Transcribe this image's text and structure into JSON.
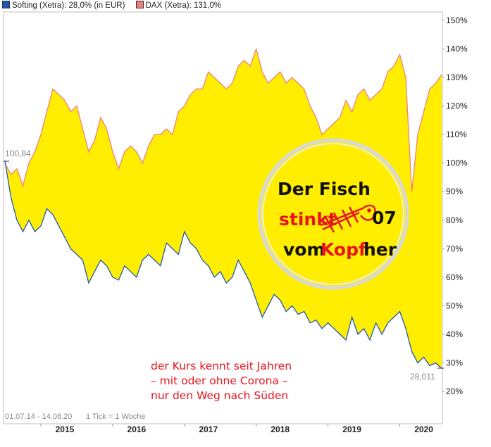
{
  "legend": [
    {
      "label": "Softing (Xetra): 28,0% (in EUR)",
      "color": "#1f57b5"
    },
    {
      "label": "DAX (Xetra): 131,0%",
      "color": "#f08080"
    }
  ],
  "chart_data": {
    "type": "area",
    "y_tick_labels": [
      "20%",
      "30%",
      "40%",
      "50%",
      "60%",
      "70%",
      "80%",
      "90%",
      "100%",
      "110%",
      "120%",
      "130%",
      "140%",
      "150%"
    ],
    "ylim": [
      15,
      155
    ],
    "x_tick_labels": [
      "2015",
      "2016",
      "2017",
      "2018",
      "2019",
      "2020"
    ],
    "date_range_label": "01.07.14 - 14.08.20",
    "tick_note": "1 Tick = 1 Woche",
    "start_value_label": "100,84",
    "end_value_label": "28,011",
    "fill_color": "#ffee00",
    "grid": false,
    "series": [
      {
        "name": "Softing (Xetra)",
        "color": "#1f57b5",
        "x": [
          "2014-07",
          "2014-08",
          "2014-09",
          "2014-10",
          "2014-11",
          "2014-12",
          "2015-01",
          "2015-02",
          "2015-03",
          "2015-04",
          "2015-05",
          "2015-06",
          "2015-07",
          "2015-08",
          "2015-09",
          "2015-10",
          "2015-11",
          "2015-12",
          "2016-01",
          "2016-02",
          "2016-03",
          "2016-04",
          "2016-05",
          "2016-06",
          "2016-07",
          "2016-08",
          "2016-09",
          "2016-10",
          "2016-11",
          "2016-12",
          "2017-01",
          "2017-02",
          "2017-03",
          "2017-04",
          "2017-05",
          "2017-06",
          "2017-07",
          "2017-08",
          "2017-09",
          "2017-10",
          "2017-11",
          "2017-12",
          "2018-01",
          "2018-02",
          "2018-03",
          "2018-04",
          "2018-05",
          "2018-06",
          "2018-07",
          "2018-08",
          "2018-09",
          "2018-10",
          "2018-11",
          "2018-12",
          "2019-01",
          "2019-02",
          "2019-03",
          "2019-04",
          "2019-05",
          "2019-06",
          "2019-07",
          "2019-08",
          "2019-09",
          "2019-10",
          "2019-11",
          "2019-12",
          "2020-01",
          "2020-02",
          "2020-03",
          "2020-04",
          "2020-05",
          "2020-06",
          "2020-07",
          "2020-08"
        ],
        "values": [
          100.8,
          88,
          80,
          76,
          80,
          76,
          78,
          84,
          82,
          78,
          74,
          70,
          68,
          66,
          58,
          62,
          66,
          64,
          60,
          59,
          64,
          62,
          60,
          66,
          68,
          66,
          64,
          72,
          70,
          68,
          76,
          72,
          70,
          66,
          64,
          60,
          62,
          58,
          60,
          66,
          62,
          58,
          52,
          46,
          50,
          54,
          52,
          48,
          50,
          47,
          48,
          44,
          45,
          42,
          44,
          42,
          40,
          38,
          46,
          40,
          42,
          38,
          44,
          40,
          44,
          46,
          48,
          42,
          34,
          30,
          32,
          29,
          30,
          28
        ]
      },
      {
        "name": "DAX (Xetra)",
        "color": "#f08080",
        "x": [
          "2014-07",
          "2014-08",
          "2014-09",
          "2014-10",
          "2014-11",
          "2014-12",
          "2015-01",
          "2015-02",
          "2015-03",
          "2015-04",
          "2015-05",
          "2015-06",
          "2015-07",
          "2015-08",
          "2015-09",
          "2015-10",
          "2015-11",
          "2015-12",
          "2016-01",
          "2016-02",
          "2016-03",
          "2016-04",
          "2016-05",
          "2016-06",
          "2016-07",
          "2016-08",
          "2016-09",
          "2016-10",
          "2016-11",
          "2016-12",
          "2017-01",
          "2017-02",
          "2017-03",
          "2017-04",
          "2017-05",
          "2017-06",
          "2017-07",
          "2017-08",
          "2017-09",
          "2017-10",
          "2017-11",
          "2017-12",
          "2018-01",
          "2018-02",
          "2018-03",
          "2018-04",
          "2018-05",
          "2018-06",
          "2018-07",
          "2018-08",
          "2018-09",
          "2018-10",
          "2018-11",
          "2018-12",
          "2019-01",
          "2019-02",
          "2019-03",
          "2019-04",
          "2019-05",
          "2019-06",
          "2019-07",
          "2019-08",
          "2019-09",
          "2019-10",
          "2019-11",
          "2019-12",
          "2020-01",
          "2020-02",
          "2020-03",
          "2020-04",
          "2020-05",
          "2020-06",
          "2020-07",
          "2020-08"
        ],
        "values": [
          100,
          96,
          98,
          92,
          100,
          104,
          110,
          118,
          126,
          124,
          122,
          118,
          120,
          112,
          104,
          108,
          116,
          112,
          104,
          98,
          104,
          106,
          104,
          100,
          106,
          110,
          110,
          112,
          110,
          118,
          120,
          124,
          126,
          126,
          132,
          130,
          128,
          126,
          128,
          134,
          136,
          134,
          140,
          132,
          128,
          130,
          132,
          128,
          130,
          128,
          126,
          120,
          116,
          110,
          112,
          114,
          116,
          122,
          118,
          124,
          126,
          122,
          124,
          126,
          132,
          134,
          138,
          130,
          90,
          110,
          118,
          126,
          128,
          131
        ]
      }
    ]
  },
  "stamp": {
    "line1": "Der Fisch",
    "line2_word": "stinkt",
    "line2_year": "07",
    "line3_a": "vom",
    "line3_b": "Kopf",
    "line3_c": "her"
  },
  "annotation_lines": [
    "der Kurs kennt seit Jahren",
    "– mit oder ohne Corona –",
    "nur den Weg nach Süden"
  ]
}
